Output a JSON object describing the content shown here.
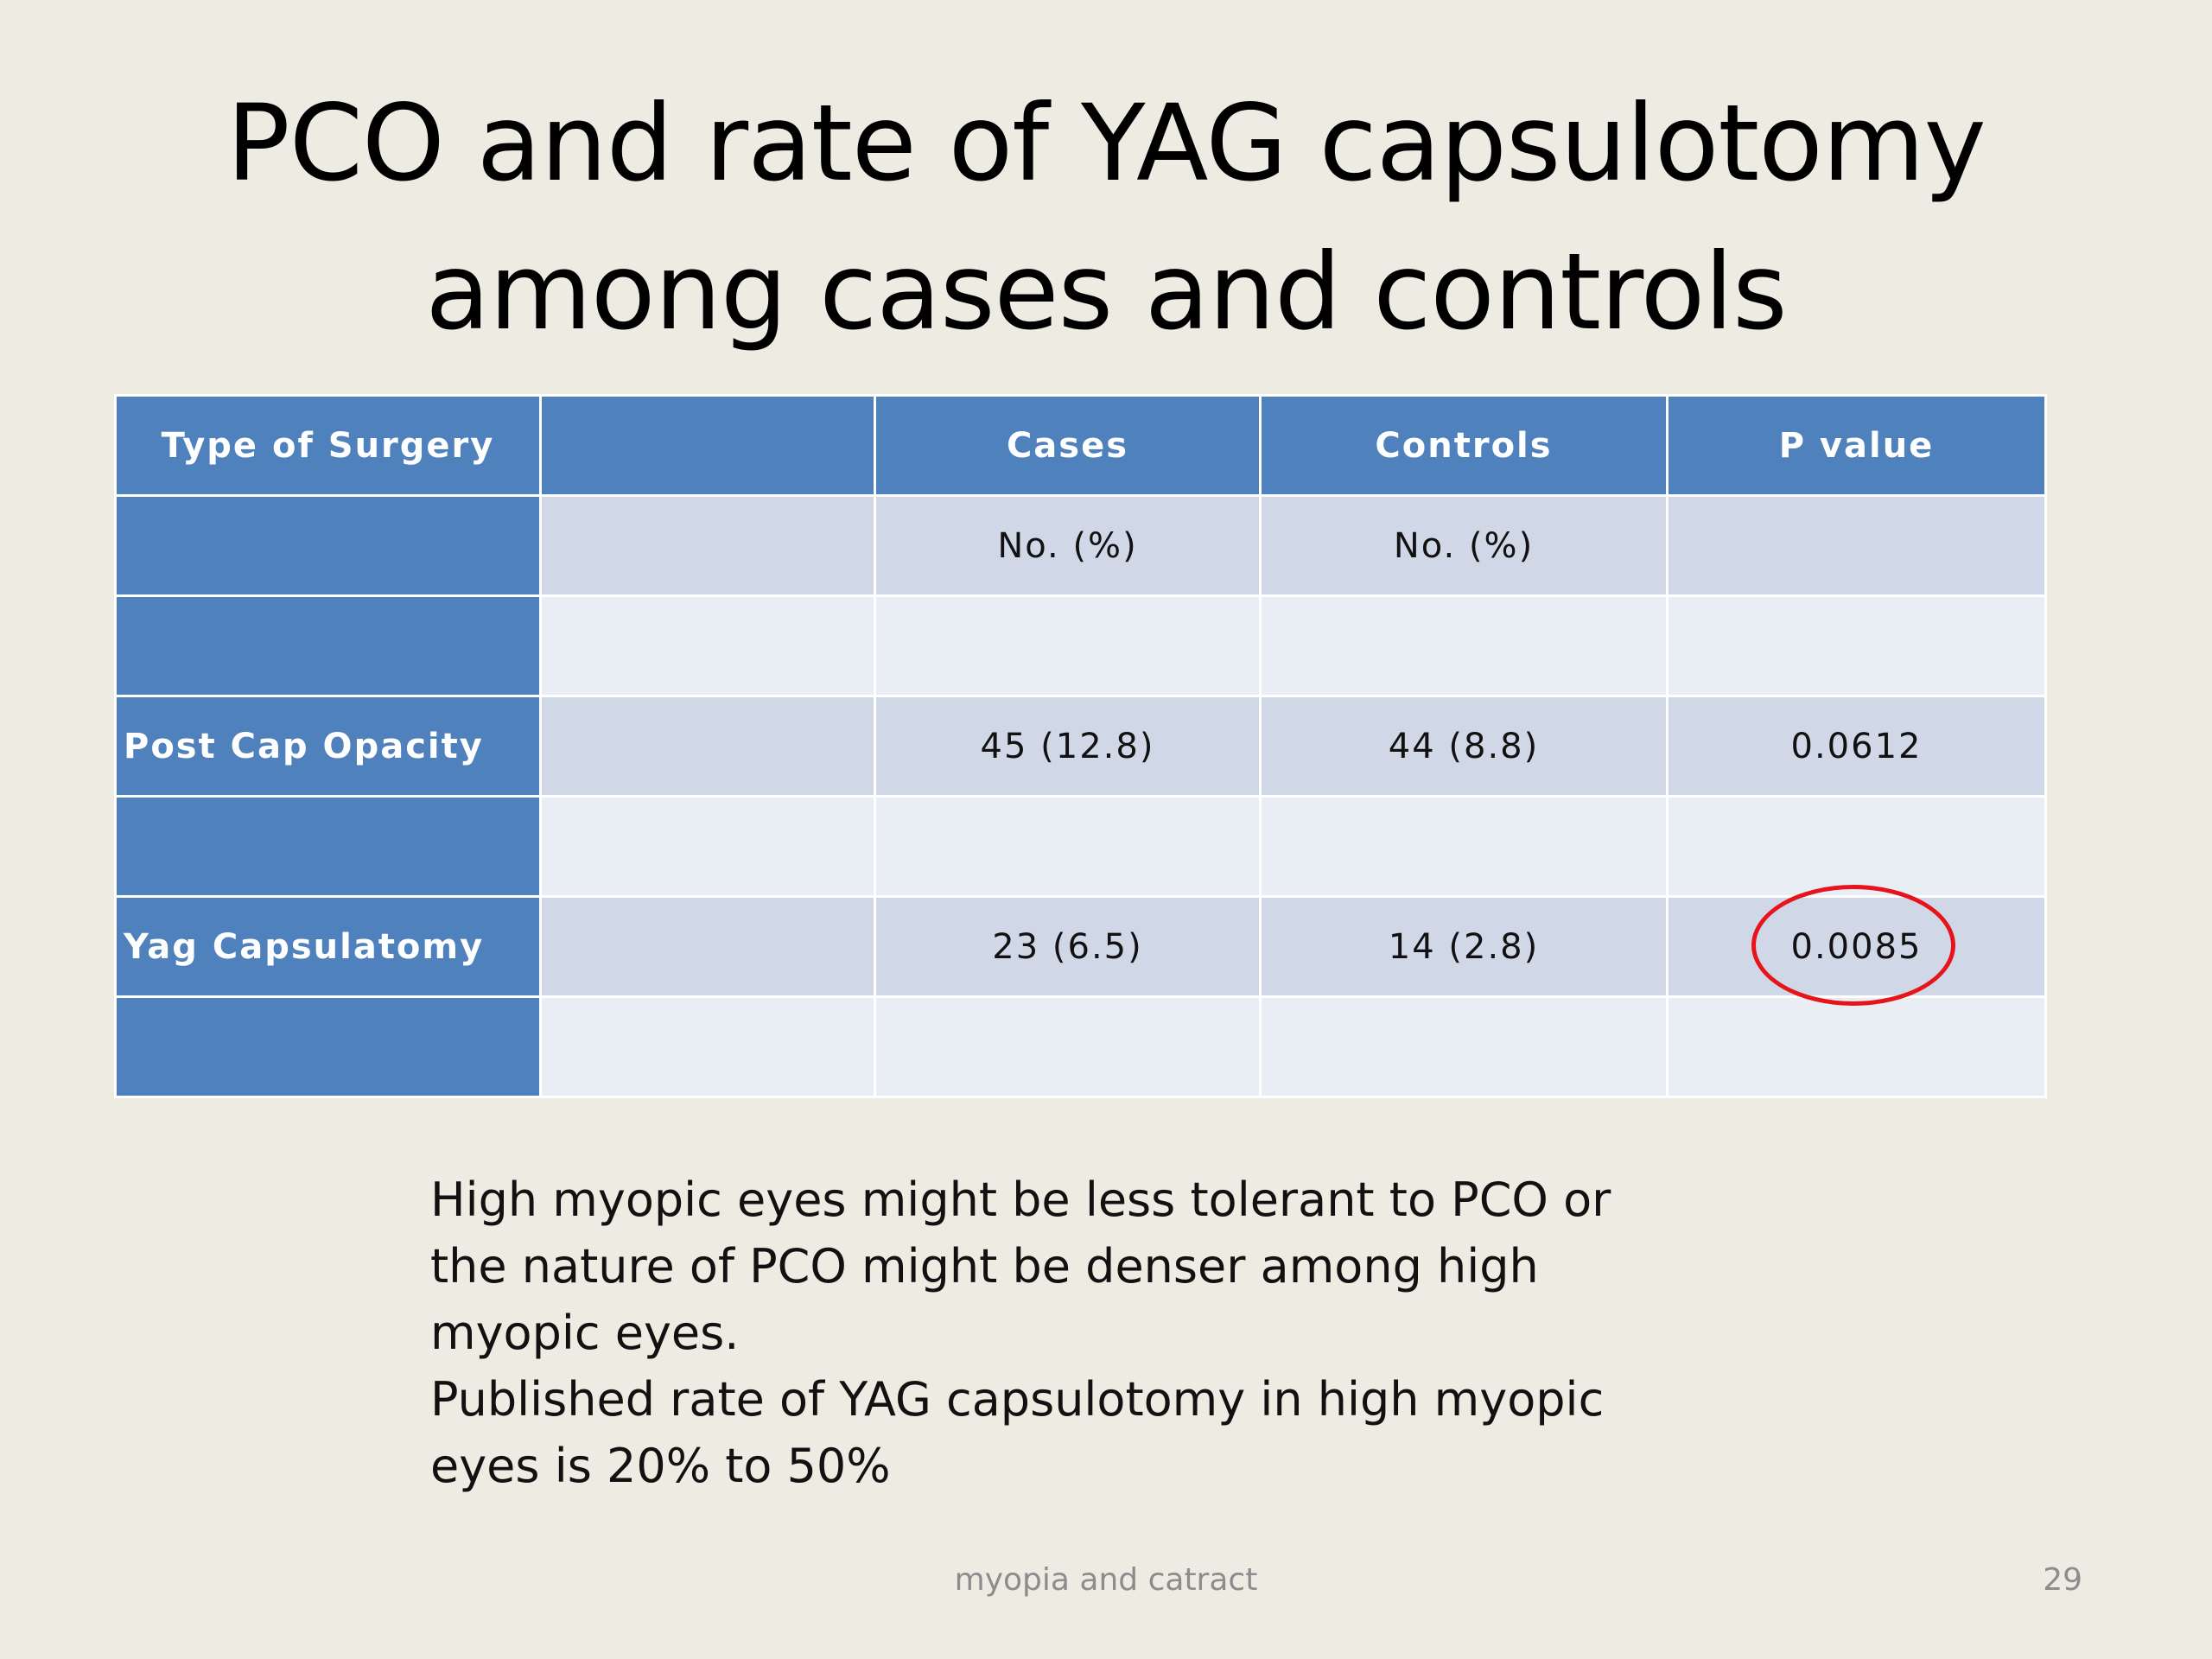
{
  "slide": {
    "title_lines": [
      "PCO and rate of YAG capsulotomy",
      "among cases and controls"
    ],
    "footer": "myopia and catract",
    "page_number": "29"
  },
  "table": {
    "headers": [
      "Type of Surgery",
      "",
      "Cases",
      "Controls",
      "P value"
    ],
    "rows": [
      [
        "",
        "",
        "No. (%)",
        "No. (%)",
        ""
      ],
      [
        "",
        "",
        "",
        "",
        ""
      ],
      [
        "Post Cap Opacity",
        "",
        "45 (12.8)",
        "44 (8.8)",
        "0.0612"
      ],
      [
        "",
        "",
        "",
        "",
        ""
      ],
      [
        "Yag Capsulatomy",
        "",
        "23 (6.5)",
        "14 (2.8)",
        "0.0085"
      ],
      [
        "",
        "",
        "",
        "",
        ""
      ]
    ],
    "header_color": "#4F81BD",
    "band_dark_color": "#D0D8E8",
    "band_light_color": "#E9EDF4",
    "highlight_color": "#E8141C"
  },
  "notes": [
    "High myopic eyes might be less tolerant to PCO or",
    "the nature of PCO might be denser among high",
    "myopic eyes.",
    "Published rate of  YAG capsulotomy in high myopic",
    "eyes  is 20% to 50%"
  ]
}
